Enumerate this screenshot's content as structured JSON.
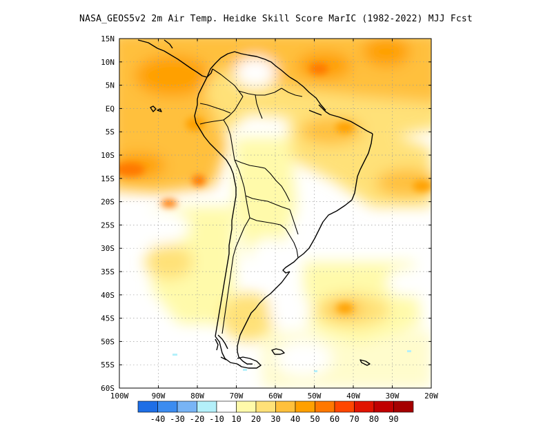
{
  "title": "NASA_GEOS5v2  2m Air Temp. Heidke Skill Score MarIC (1982-2022) MJJ Fcst",
  "map": {
    "lat_labels": [
      "15N",
      "10N",
      "5N",
      "EQ",
      "5S",
      "10S",
      "15S",
      "20S",
      "25S",
      "30S",
      "35S",
      "40S",
      "45S",
      "50S",
      "55S",
      "60S"
    ],
    "lon_labels": [
      "100W",
      "90W",
      "80W",
      "70W",
      "60W",
      "50W",
      "40W",
      "30W",
      "20W"
    ],
    "lat_range": [
      -60,
      15
    ],
    "lon_range": [
      -100,
      -20
    ],
    "gridlines": "dotted"
  },
  "colorbar": {
    "colors": [
      "#1e6ee6",
      "#3c8cf0",
      "#78b4f5",
      "#b4f0fa",
      "#ffffff",
      "#fffaaa",
      "#ffe178",
      "#ffc03c",
      "#ffa000",
      "#ff7800",
      "#ff4600",
      "#e11400",
      "#c00000",
      "#a50000"
    ],
    "labels": [
      "-40",
      "-30",
      "-20",
      "-10",
      "10",
      "20",
      "30",
      "40",
      "50",
      "60",
      "70",
      "80",
      "90"
    ]
  }
}
